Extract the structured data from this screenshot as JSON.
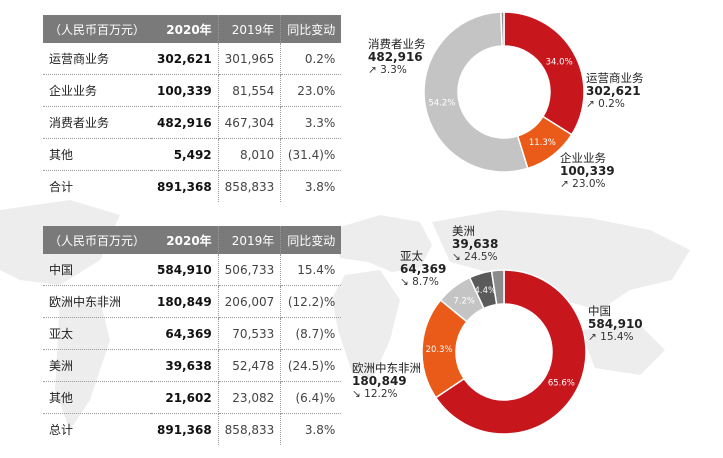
{
  "colors": {
    "red": "#c8161d",
    "orange": "#ea5a18",
    "gray": "#c4c4c4",
    "dark_gray": "#5a5a5a",
    "mid_gray": "#8c8c8c",
    "header": "#7a7a7a"
  },
  "table1": {
    "headers": [
      "（人民币百万元）",
      "2020年",
      "2019年",
      "同比变动"
    ],
    "rows": [
      [
        "运营商业务",
        "302,621",
        "301,965",
        "0.2%"
      ],
      [
        "企业业务",
        "100,339",
        "81,554",
        "23.0%"
      ],
      [
        "消费者业务",
        "482,916",
        "467,304",
        "3.3%"
      ],
      [
        "其他",
        "5,492",
        "8,010",
        "(31.4)%"
      ],
      [
        "合计",
        "891,368",
        "858,833",
        "3.8%"
      ]
    ]
  },
  "table2": {
    "headers": [
      "（人民币百万元）",
      "2020年",
      "2019年",
      "同比变动"
    ],
    "rows": [
      [
        "中国",
        "584,910",
        "506,733",
        "15.4%"
      ],
      [
        "欧洲中东非洲",
        "180,849",
        "206,007",
        "(12.2)%"
      ],
      [
        "亚太",
        "64,369",
        "70,533",
        "(8.7)%"
      ],
      [
        "美洲",
        "39,638",
        "52,478",
        "(24.5)%"
      ],
      [
        "其他",
        "21,602",
        "23,082",
        "(6.4)%"
      ],
      [
        "总计",
        "891,368",
        "858,833",
        "3.8%"
      ]
    ]
  },
  "chart_data": [
    {
      "type": "pie",
      "donut": true,
      "slices": [
        {
          "label": "运营商业务",
          "value": 302621,
          "pct_label": "34.0%",
          "growth": "0.2%",
          "trend": "up",
          "value_label": "302,621",
          "color": "#c8161d"
        },
        {
          "label": "企业业务",
          "value": 100339,
          "pct_label": "11.3%",
          "growth": "23.0%",
          "trend": "up",
          "value_label": "100,339",
          "color": "#ea5a18"
        },
        {
          "label": "消费者业务",
          "value": 482916,
          "pct_label": "54.2%",
          "growth": "3.3%",
          "trend": "up",
          "value_label": "482,916",
          "color": "#c4c4c4"
        },
        {
          "label": "其他",
          "value": 5492,
          "pct_label": "",
          "growth": "",
          "trend": "",
          "value_label": "",
          "color": "#8c8c8c"
        }
      ]
    },
    {
      "type": "pie",
      "donut": true,
      "slices": [
        {
          "label": "中国",
          "value": 584910,
          "pct_label": "65.6%",
          "growth": "15.4%",
          "trend": "up",
          "value_label": "584,910",
          "color": "#c8161d"
        },
        {
          "label": "欧洲中东非洲",
          "value": 180849,
          "pct_label": "20.3%",
          "growth": "12.2%",
          "trend": "down",
          "value_label": "180,849",
          "color": "#ea5a18"
        },
        {
          "label": "亚太",
          "value": 64369,
          "pct_label": "7.2%",
          "growth": "8.7%",
          "trend": "down",
          "value_label": "64,369",
          "color": "#c4c4c4"
        },
        {
          "label": "美洲",
          "value": 39638,
          "pct_label": "4.4%",
          "growth": "24.5%",
          "trend": "down",
          "value_label": "39,638",
          "color": "#5a5a5a"
        },
        {
          "label": "其他",
          "value": 21602,
          "pct_label": "",
          "growth": "",
          "trend": "",
          "value_label": "",
          "color": "#8c8c8c"
        }
      ]
    }
  ]
}
